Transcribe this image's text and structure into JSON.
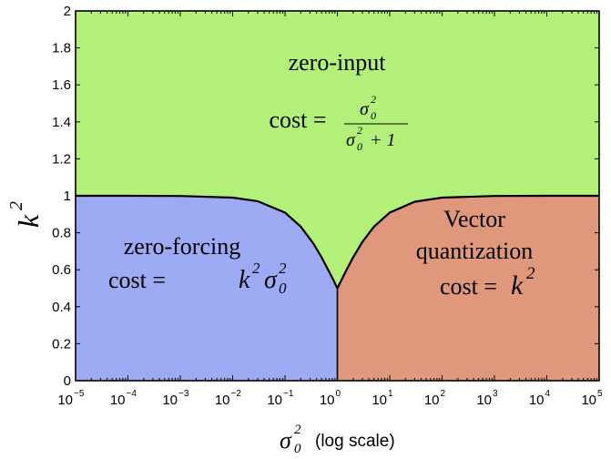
{
  "chart_data": {
    "type": "area",
    "ylabel": "k",
    "ylabel_exp": "2",
    "xlabel_sym": "σ",
    "xlabel_sub": "0",
    "xlabel_sup": "2",
    "xlabel_suffix": "(log scale)",
    "x_scale": "log",
    "xlim": [
      1e-05,
      100000.0
    ],
    "ylim": [
      0,
      2
    ],
    "y_ticks": [
      "0",
      "0.2",
      "0.4",
      "0.6",
      "0.8",
      "1",
      "1.2",
      "1.4",
      "1.6",
      "1.8",
      "2"
    ],
    "x_ticks": [
      {
        "base": "10",
        "exp": "−5",
        "value": 1e-05
      },
      {
        "base": "10",
        "exp": "−4",
        "value": 0.0001
      },
      {
        "base": "10",
        "exp": "−3",
        "value": 0.001
      },
      {
        "base": "10",
        "exp": "−2",
        "value": 0.01
      },
      {
        "base": "10",
        "exp": "−1",
        "value": 0.1
      },
      {
        "base": "10",
        "exp": "0",
        "value": 1
      },
      {
        "base": "10",
        "exp": "1",
        "value": 10
      },
      {
        "base": "10",
        "exp": "2",
        "value": 100
      },
      {
        "base": "10",
        "exp": "3",
        "value": 1000
      },
      {
        "base": "10",
        "exp": "4",
        "value": 10000
      },
      {
        "base": "10",
        "exp": "5",
        "value": 100000
      }
    ],
    "boundary": {
      "x": [
        1e-05,
        0.0001,
        0.001,
        0.01,
        0.03,
        0.1,
        0.2,
        0.35,
        0.5,
        0.7,
        0.85,
        1,
        1.2,
        1.5,
        2,
        3,
        5,
        10,
        30,
        100,
        1000,
        10000,
        100000
      ],
      "y": [
        1.0,
        1.0,
        0.999,
        0.99,
        0.971,
        0.909,
        0.833,
        0.741,
        0.667,
        0.588,
        0.541,
        0.5,
        0.545,
        0.6,
        0.667,
        0.75,
        0.833,
        0.909,
        0.968,
        0.99,
        0.999,
        1.0,
        1.0
      ]
    },
    "regions": {
      "zero_input": {
        "name": "zero-input",
        "color": "#b3f07a",
        "cost_prefix": "cost =",
        "cost_num": "σ",
        "cost_den_suffix": "+ 1"
      },
      "zero_forcing": {
        "name": "zero-forcing",
        "color": "#9dabf5",
        "cost_prefix": "cost ="
      },
      "vector_quantization": {
        "name_line1": "Vector",
        "name_line2": "quantization",
        "color": "#e0987d",
        "cost_prefix": "cost ="
      }
    }
  }
}
